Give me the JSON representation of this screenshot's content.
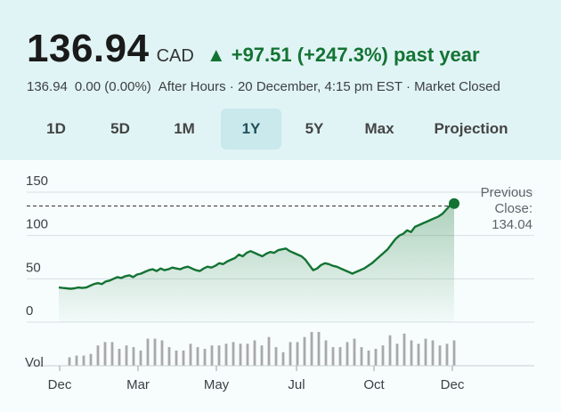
{
  "quote": {
    "price": "136.94",
    "currency": "CAD",
    "change_arrow": "▲",
    "change_text": "+97.51 (+247.3%) past year",
    "after_hours_price": "136.94",
    "after_hours_change": "0.00 (0.00%)",
    "status_text": "After Hours · 20 December, 4:15 pm EST · Market Closed"
  },
  "tabs": [
    {
      "label": "1D"
    },
    {
      "label": "5D"
    },
    {
      "label": "1M"
    },
    {
      "label": "1Y",
      "active": true
    },
    {
      "label": "5Y"
    },
    {
      "label": "Max"
    },
    {
      "label": "Projection"
    }
  ],
  "previous_close": {
    "line1": "Previous",
    "line2": "Close:",
    "value": "134.04"
  },
  "colors": {
    "up": "#137333",
    "header_bg": "#e1f4f5",
    "active_tab_bg": "#c9e9ec",
    "volume_bar": "#a9a9a9"
  },
  "chart_data": {
    "type": "area",
    "y_ticks": [
      "150",
      "100",
      "50",
      "0"
    ],
    "ylim": [
      0,
      150
    ],
    "volume_label": "Vol",
    "x_ticks": [
      "Dec",
      "Mar",
      "May",
      "Jul",
      "Oct",
      "Dec"
    ],
    "previous_close": 134.04,
    "series": [
      {
        "values": [
          40,
          39.5,
          39,
          38.5,
          39,
          40,
          39.5,
          40,
          42,
          44,
          45,
          44,
          47,
          48,
          50,
          52,
          51,
          53,
          54,
          52,
          55,
          56,
          58,
          60,
          61,
          59,
          62,
          60,
          61,
          63,
          62,
          61,
          63,
          64,
          62,
          60,
          59,
          62,
          64,
          63,
          65,
          68,
          67,
          70,
          72,
          74,
          78,
          76,
          80,
          82,
          80,
          78,
          76,
          79,
          81,
          80,
          83,
          84,
          85,
          82,
          80,
          78,
          76,
          72,
          66,
          60,
          62,
          66,
          68,
          67,
          65,
          64,
          62,
          60,
          58,
          56,
          58,
          60,
          62,
          65,
          68,
          72,
          76,
          80,
          84,
          90,
          96,
          100,
          102,
          106,
          104,
          110,
          112,
          114,
          116,
          118,
          120,
          122,
          125,
          130,
          135,
          136.94
        ]
      }
    ],
    "volume": [
      5,
      6,
      6,
      7,
      12,
      14,
      14,
      10,
      12,
      11,
      9,
      16,
      16,
      15,
      11,
      9,
      9,
      13,
      11,
      10,
      12,
      12,
      13,
      14,
      13,
      13,
      15,
      12,
      17,
      11,
      8,
      14,
      14,
      17,
      20,
      20,
      15,
      11,
      11,
      14,
      16,
      11,
      9,
      10,
      12,
      18,
      13,
      19,
      15,
      13,
      16,
      15,
      12,
      13,
      15
    ]
  }
}
